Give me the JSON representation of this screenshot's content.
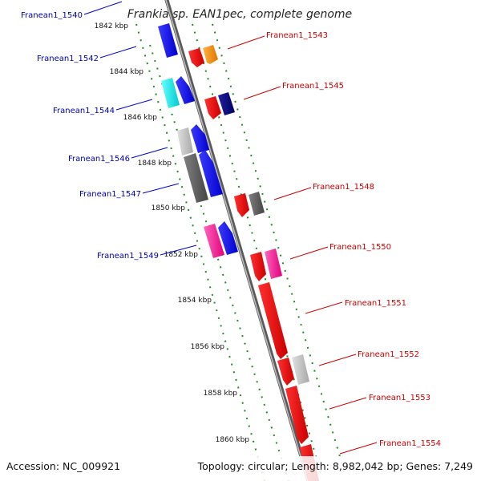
{
  "title": "Frankia sp. EAN1pec, complete genome",
  "footer": {
    "accession": "Accession: NC_009921",
    "summary": "Topology: circular; Length: 8,982,042 bp; Genes: 7,249"
  },
  "kbp_ticks": [
    "1842 kbp",
    "1844 kbp",
    "1846 kbp",
    "1848 kbp",
    "1850 kbp",
    "1852 kbp",
    "1854 kbp",
    "1856 kbp",
    "1858 kbp",
    "1860 kbp"
  ],
  "left_labels": [
    "Franean1_1540",
    "Franean1_1542",
    "Franean1_1544",
    "Franean1_1546",
    "Franean1_1547",
    "Franean1_1549"
  ],
  "right_labels": [
    "Franean1_1543",
    "Franean1_1545",
    "Franean1_1548",
    "Franean1_1550",
    "Franean1_1551",
    "Franean1_1552",
    "Franean1_1553",
    "Franean1_1554"
  ],
  "colors": {
    "left_label": "#0000aa",
    "right_label": "#cc0000",
    "track_dots": "#228b22",
    "backbone": "#888888"
  }
}
